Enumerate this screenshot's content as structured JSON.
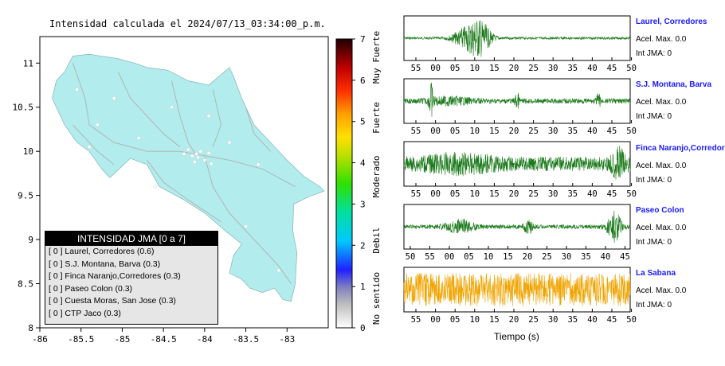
{
  "map": {
    "title": "Intensidad calculada el 2024/07/13_03:34:00_p.m.",
    "x_ticks": [
      "-86",
      "-85.5",
      "-85",
      "-84.5",
      "-84",
      "-83.5",
      "-83"
    ],
    "y_ticks": [
      "11",
      "10.5",
      "10",
      "9.5",
      "9",
      "8.5",
      "8"
    ],
    "land_color": "#b2ecec",
    "legend": {
      "title": "INTENSIDAD JMA [0 a 7]",
      "items": [
        "[ 0 ]  Laurel, Corredores (0.6)",
        "[ 0 ]  S.J. Montana, Barva (0.3)",
        "[ 0 ]  Finca Naranjo,Corredores (0.3)",
        "[ 0 ]  Paseo Colon (0.3)",
        "[ 0 ]  Cuesta Moras, San Jose (0.3)",
        "[ 0 ]  CTP Jaco (0.3)"
      ]
    }
  },
  "colorbar": {
    "ticks": [
      "0",
      "1",
      "2",
      "3",
      "4",
      "5",
      "6",
      "7"
    ],
    "labels": [
      "No sentido",
      "Debil",
      "Moderado",
      "Fuerte",
      "Muy Fuerte"
    ]
  },
  "waveforms": {
    "xlabel": "Tiempo (s)",
    "stations": [
      {
        "name": "Laurel, Corredores",
        "acel": "Acel. Max. 0.0",
        "int": "Int JMA: 0",
        "color": "#1a7a1a",
        "ticks": [
          "55",
          "00",
          "05",
          "10",
          "15",
          "20",
          "25",
          "30",
          "35",
          "40",
          "45",
          "50"
        ]
      },
      {
        "name": "S.J. Montana, Barva",
        "acel": "Acel. Max. 0.0",
        "int": "Int JMA: 0",
        "color": "#1a7a1a",
        "ticks": [
          "55",
          "00",
          "05",
          "10",
          "15",
          "20",
          "25",
          "30",
          "35",
          "40",
          "45",
          "50"
        ]
      },
      {
        "name": "Finca Naranjo,Corredores",
        "acel": "Acel. Max. 0.0",
        "int": "Int JMA: 0",
        "color": "#1a7a1a",
        "ticks": [
          "55",
          "00",
          "05",
          "10",
          "15",
          "20",
          "25",
          "30",
          "35",
          "40",
          "45",
          "50"
        ]
      },
      {
        "name": "Paseo Colon",
        "acel": "Acel. Max. 0.0",
        "int": "Int JMA: 0",
        "color": "#1a7a1a",
        "ticks": [
          "50",
          "55",
          "00",
          "05",
          "10",
          "15",
          "20",
          "25",
          "30",
          "35",
          "40",
          "45"
        ]
      },
      {
        "name": "La Sabana",
        "acel": "Acel. Max. 0.0",
        "int": "Int JMA: 0",
        "color": "#f0a400",
        "ticks": [
          "55",
          "00",
          "05",
          "10",
          "15",
          "20",
          "25",
          "30",
          "35",
          "40",
          "45",
          "50"
        ]
      }
    ]
  },
  "chart_data": [
    {
      "type": "map",
      "title": "Intensidad calculada el 2024/07/13_03:34:00_p.m.",
      "xlim": [
        -86,
        -82.5
      ],
      "ylim": [
        8,
        11.3
      ],
      "x_ticks": [
        -86,
        -85.5,
        -85,
        -84.5,
        -84,
        -83.5,
        -83
      ],
      "y_ticks": [
        8,
        8.5,
        9,
        9.5,
        10,
        10.5,
        11
      ]
    },
    {
      "type": "colorbar",
      "range": [
        0,
        7
      ],
      "ticks": [
        0,
        1,
        2,
        3,
        4,
        5,
        6,
        7
      ],
      "labels": [
        "No sentido",
        "Debil",
        "Moderado",
        "Fuerte",
        "Muy Fuerte"
      ]
    },
    {
      "type": "line",
      "xlabel": "Tiempo (s)",
      "series": [
        {
          "name": "Laurel, Corredores",
          "acel_max": 0.0,
          "int_jma": 0
        },
        {
          "name": "S.J. Montana, Barva",
          "acel_max": 0.0,
          "int_jma": 0
        },
        {
          "name": "Finca Naranjo,Corredores",
          "acel_max": 0.0,
          "int_jma": 0
        },
        {
          "name": "Paseo Colon",
          "acel_max": 0.0,
          "int_jma": 0
        },
        {
          "name": "La Sabana",
          "acel_max": 0.0,
          "int_jma": 0
        }
      ]
    }
  ]
}
